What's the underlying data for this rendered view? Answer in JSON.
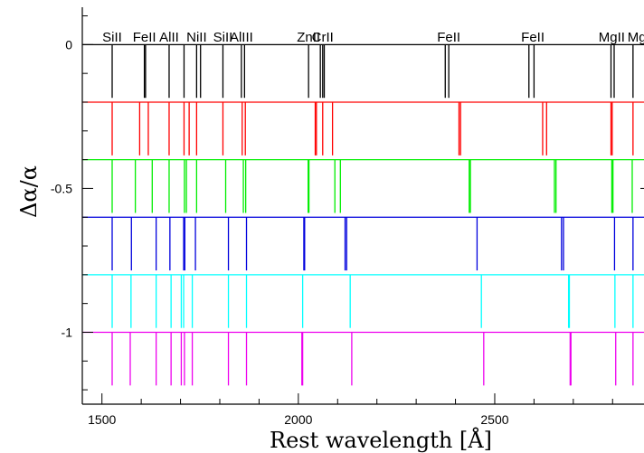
{
  "chart_data": {
    "type": "line",
    "title": "",
    "xlabel": "Rest wavelength [Å]",
    "ylabel": "Δα/α",
    "xlim": [
      1450,
      2880
    ],
    "ylim": [
      -1.25,
      0.13
    ],
    "x_ticks": [
      {
        "value": 1500,
        "label": "1500"
      },
      {
        "value": 2000,
        "label": "2000"
      },
      {
        "value": 2500,
        "label": "2500"
      }
    ],
    "y_ticks": [
      {
        "value": 0,
        "label": "0"
      },
      {
        "value": -0.5,
        "label": "-0.5"
      },
      {
        "value": -1,
        "label": "-1"
      }
    ],
    "line_labels": [
      {
        "text": "SiII",
        "x": 1526
      },
      {
        "text": "FeII",
        "x": 1608
      },
      {
        "text": "AlII",
        "x": 1671
      },
      {
        "text": "NiII",
        "x": 1741
      },
      {
        "text": "SiII",
        "x": 1808
      },
      {
        "text": "AlIII",
        "x": 1855
      },
      {
        "text": "ZnII",
        "x": 2026
      },
      {
        "text": "CrII",
        "x": 2062
      },
      {
        "text": "FeII",
        "x": 2383
      },
      {
        "text": "FeII",
        "x": 2597
      },
      {
        "text": "MgII",
        "x": 2798
      },
      {
        "text": "Mg",
        "x": 2862
      }
    ],
    "series": [
      {
        "color": "#000000",
        "baseline": 0.0,
        "bottom": -0.185,
        "lines": [
          1526,
          1608,
          1611,
          1671,
          1709,
          1741,
          1751,
          1808,
          1855,
          1863,
          2026,
          2056,
          2062,
          2066,
          2374,
          2383,
          2587,
          2600,
          2796,
          2804,
          2852
        ]
      },
      {
        "color": "#ff0000",
        "baseline": -0.2,
        "bottom": -0.385,
        "lines": [
          1526,
          1596,
          1618,
          1671,
          1709,
          1722,
          1741,
          1808,
          1857,
          1865,
          2043,
          2046,
          2062,
          2087,
          2409,
          2413,
          2622,
          2632,
          2796,
          2799,
          2852
        ]
      },
      {
        "color": "#00ee00",
        "baseline": -0.4,
        "bottom": -0.585,
        "lines": [
          1526,
          1585,
          1628,
          1671,
          1710,
          1715,
          1741,
          1815,
          1860,
          1866,
          2025,
          2027,
          2093,
          2107,
          2435,
          2438,
          2652,
          2656,
          2798,
          2801,
          2850
        ]
      },
      {
        "color": "#0000dd",
        "baseline": -0.6,
        "bottom": -0.785,
        "lines": [
          1526,
          1575,
          1638,
          1673,
          1708,
          1711,
          1738,
          1822,
          1868,
          2014,
          2016,
          2119,
          2123,
          2455,
          2670,
          2675,
          2805,
          2852
        ]
      },
      {
        "color": "#00ffff",
        "baseline": -0.8,
        "bottom": -0.985,
        "lines": [
          1526,
          1574,
          1638,
          1676,
          1702,
          1708,
          1730,
          1822,
          1868,
          2011,
          2132,
          2466,
          2688,
          2690,
          2806,
          2852
        ]
      },
      {
        "color": "#ee00ee",
        "baseline": -1.0,
        "bottom": -1.185,
        "lines": [
          1526,
          1572,
          1638,
          1676,
          1702,
          1710,
          1730,
          1822,
          1868,
          2009,
          2011,
          2136,
          2472,
          2692,
          2694,
          2808,
          2852
        ]
      }
    ]
  }
}
